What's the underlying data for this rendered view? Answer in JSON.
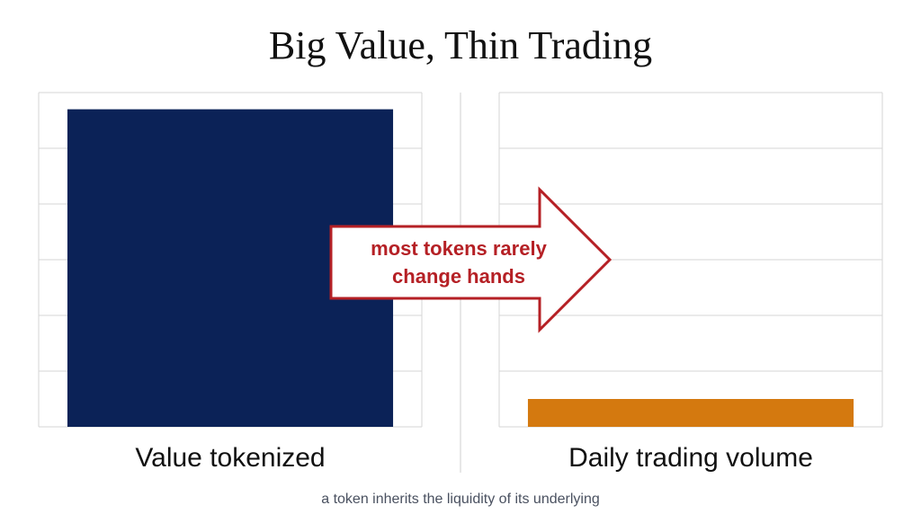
{
  "title": "Big Value, Thin Trading",
  "annotation": [
    "most tokens rarely",
    "change hands"
  ],
  "caption": "a token inherits the liquidity of its underlying",
  "chart_data": [
    {
      "type": "bar",
      "categories": [
        "Value tokenized"
      ],
      "values": [
        5.7
      ],
      "color": "#0b2257",
      "ylim": [
        0,
        6
      ],
      "yticks": [
        0,
        1,
        2,
        3,
        4,
        5,
        6
      ],
      "grid": true
    },
    {
      "type": "bar",
      "categories": [
        "Daily trading volume"
      ],
      "values": [
        0.5
      ],
      "color": "#d4790f",
      "ylim": [
        0,
        6
      ],
      "yticks": [
        0,
        1,
        2,
        3,
        4,
        5,
        6
      ],
      "grid": true
    }
  ]
}
